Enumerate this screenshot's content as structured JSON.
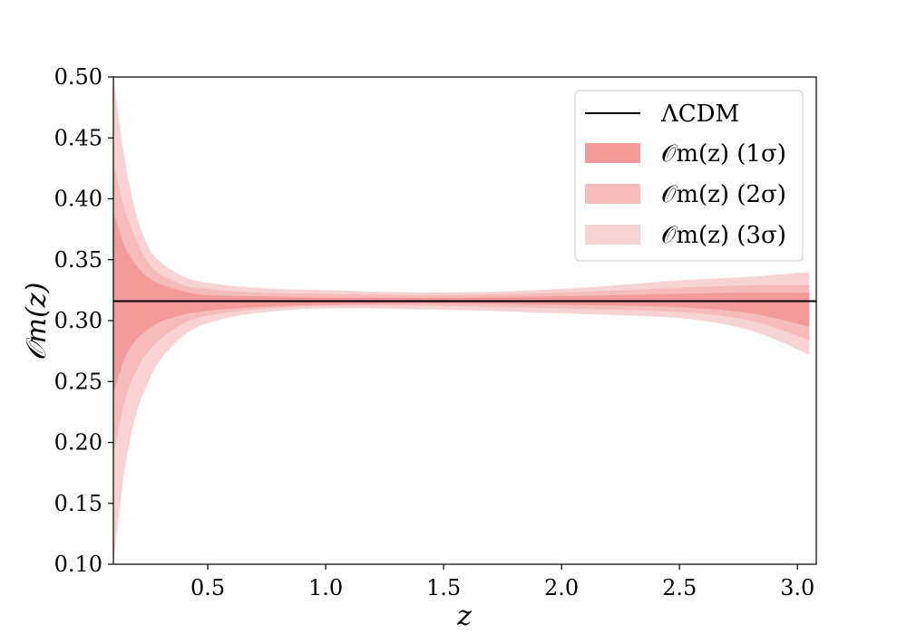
{
  "chart_data": {
    "type": "area",
    "xlabel": "z",
    "ylabel": "𝒪m(z)",
    "xlim": [
      0.1,
      3.08
    ],
    "ylim": [
      0.1,
      0.5
    ],
    "xticks": [
      "0.5",
      "1.0",
      "1.5",
      "2.0",
      "2.5",
      "3.0"
    ],
    "yticks": [
      "0.10",
      "0.15",
      "0.20",
      "0.25",
      "0.30",
      "0.35",
      "0.40",
      "0.45",
      "0.50"
    ],
    "grid": false,
    "legend_position": "top-right",
    "reference_line": {
      "name": "ΛCDM",
      "y": 0.316,
      "color": "#000000"
    },
    "x": [
      0.1,
      0.15,
      0.2,
      0.25,
      0.3,
      0.4,
      0.5,
      0.7,
      1.0,
      1.5,
      2.0,
      2.5,
      2.8,
      3.05
    ],
    "series": [
      {
        "name": "𝒪m(z) (3σ)",
        "color": "#f8d3d3",
        "upper": [
          0.5,
          0.43,
          0.385,
          0.36,
          0.348,
          0.336,
          0.331,
          0.327,
          0.325,
          0.323,
          0.326,
          0.333,
          0.336,
          0.34
        ],
        "lower": [
          0.1,
          0.18,
          0.225,
          0.25,
          0.268,
          0.288,
          0.298,
          0.306,
          0.31,
          0.309,
          0.306,
          0.302,
          0.292,
          0.272
        ]
      },
      {
        "name": "𝒪m(z) (2σ)",
        "color": "#f6bcbc",
        "upper": [
          0.43,
          0.39,
          0.365,
          0.347,
          0.338,
          0.329,
          0.326,
          0.323,
          0.322,
          0.321,
          0.323,
          0.327,
          0.329,
          0.329
        ],
        "lower": [
          0.19,
          0.235,
          0.26,
          0.275,
          0.285,
          0.298,
          0.304,
          0.309,
          0.312,
          0.312,
          0.31,
          0.307,
          0.3,
          0.284
        ]
      },
      {
        "name": "𝒪m(z) (1σ)",
        "color": "#f39a9a",
        "upper": [
          0.39,
          0.36,
          0.345,
          0.335,
          0.33,
          0.324,
          0.321,
          0.32,
          0.319,
          0.319,
          0.32,
          0.322,
          0.323,
          0.323
        ],
        "lower": [
          0.24,
          0.27,
          0.285,
          0.293,
          0.299,
          0.305,
          0.308,
          0.311,
          0.313,
          0.314,
          0.313,
          0.311,
          0.306,
          0.295
        ]
      }
    ],
    "legend": [
      {
        "label": "ΛCDM",
        "kind": "line",
        "color": "#000000"
      },
      {
        "label": "𝒪m(z) (1σ)",
        "kind": "patch",
        "color": "#f39a9a"
      },
      {
        "label": "𝒪m(z) (2σ)",
        "kind": "patch",
        "color": "#f6bcbc"
      },
      {
        "label": "𝒪m(z) (3σ)",
        "kind": "patch",
        "color": "#f8d3d3"
      }
    ]
  }
}
